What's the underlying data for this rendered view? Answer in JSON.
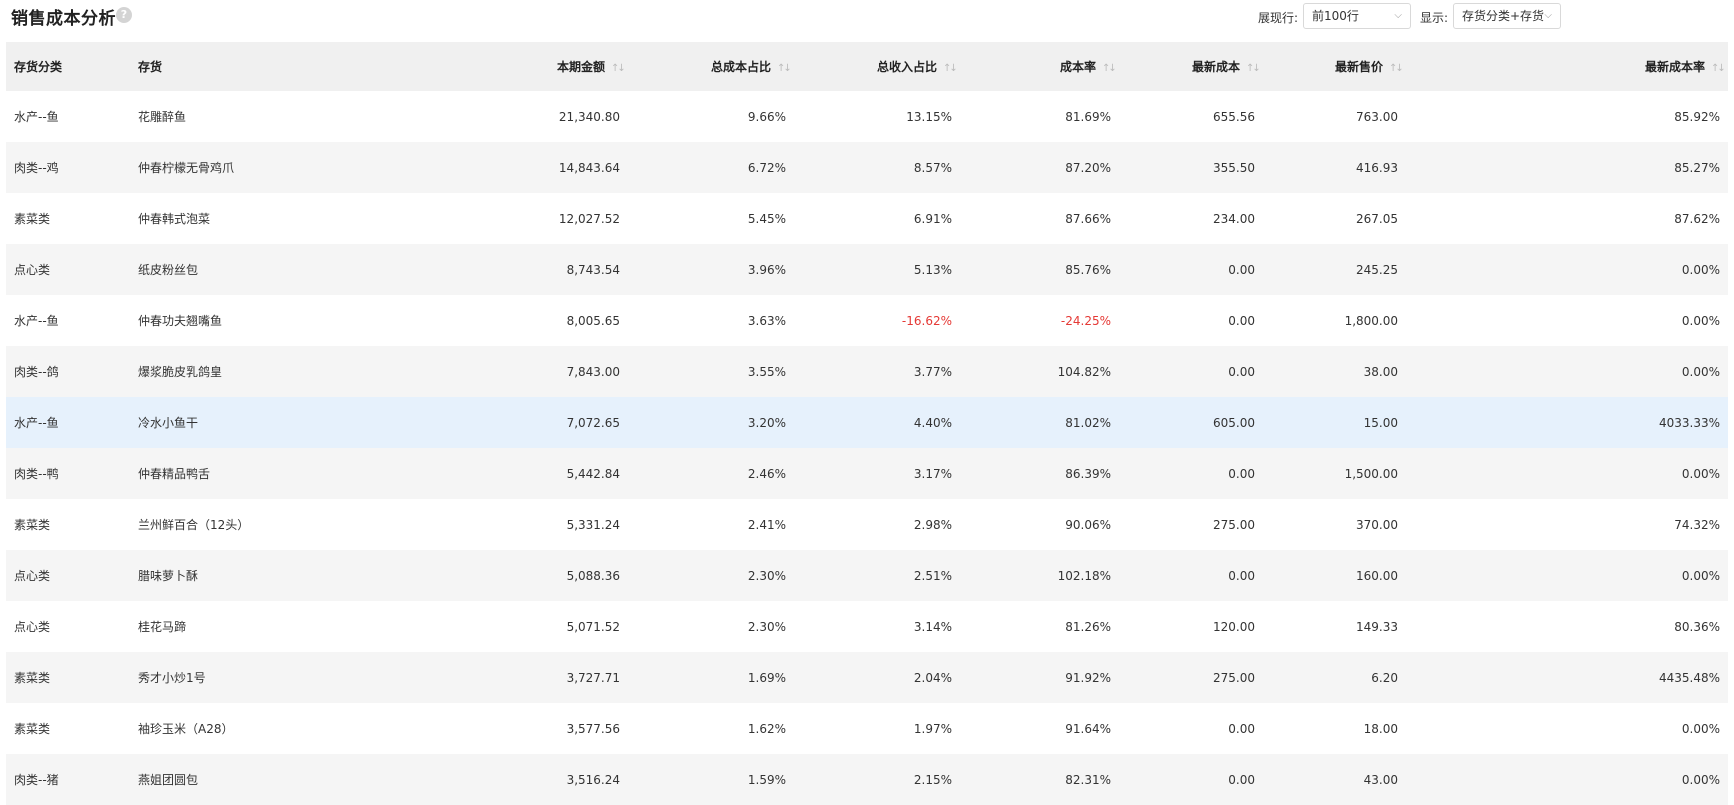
{
  "page": {
    "title": "销售成本分析",
    "help_icon": "question-circle-icon"
  },
  "controls": {
    "rows_label": "展现行:",
    "rows_value": "前100行",
    "display_label": "显示:",
    "display_value": "存货分类+存货"
  },
  "table": {
    "columns": [
      "存货分类",
      "存货",
      "本期金额",
      "总成本占比",
      "总收入占比",
      "成本率",
      "最新成本",
      "最新售价",
      "最新成本率"
    ],
    "rows": [
      [
        "水产--鱼",
        "花雕醉鱼",
        "21,340.80",
        "9.66%",
        "13.15%",
        "81.69%",
        "655.56",
        "763.00",
        "85.92%"
      ],
      [
        "肉类--鸡",
        "仲春柠檬无骨鸡爪",
        "14,843.64",
        "6.72%",
        "8.57%",
        "87.20%",
        "355.50",
        "416.93",
        "85.27%"
      ],
      [
        "素菜类",
        "仲春韩式泡菜",
        "12,027.52",
        "5.45%",
        "6.91%",
        "87.66%",
        "234.00",
        "267.05",
        "87.62%"
      ],
      [
        "点心类",
        "纸皮粉丝包",
        "8,743.54",
        "3.96%",
        "5.13%",
        "85.76%",
        "0.00",
        "245.25",
        "0.00%"
      ],
      [
        "水产--鱼",
        "仲春功夫翘嘴鱼",
        "8,005.65",
        "3.63%",
        "-16.62%",
        "-24.25%",
        "0.00",
        "1,800.00",
        "0.00%"
      ],
      [
        "肉类--鸽",
        "爆浆脆皮乳鸽皇",
        "7,843.00",
        "3.55%",
        "3.77%",
        "104.82%",
        "0.00",
        "38.00",
        "0.00%"
      ],
      [
        "水产--鱼",
        "冷水小鱼干",
        "7,072.65",
        "3.20%",
        "4.40%",
        "81.02%",
        "605.00",
        "15.00",
        "4033.33%"
      ],
      [
        "肉类--鸭",
        "仲春精品鸭舌",
        "5,442.84",
        "2.46%",
        "3.17%",
        "86.39%",
        "0.00",
        "1,500.00",
        "0.00%"
      ],
      [
        "素菜类",
        "兰州鲜百合（12头）",
        "5,331.24",
        "2.41%",
        "2.98%",
        "90.06%",
        "275.00",
        "370.00",
        "74.32%"
      ],
      [
        "点心类",
        "腊味萝卜酥",
        "5,088.36",
        "2.30%",
        "2.51%",
        "102.18%",
        "0.00",
        "160.00",
        "0.00%"
      ],
      [
        "点心类",
        "桂花马蹄",
        "5,071.52",
        "2.30%",
        "3.14%",
        "81.26%",
        "120.00",
        "149.33",
        "80.36%"
      ],
      [
        "素菜类",
        "秀才小炒1号",
        "3,727.71",
        "1.69%",
        "2.04%",
        "91.92%",
        "275.00",
        "6.20",
        "4435.48%"
      ],
      [
        "素菜类",
        "袖珍玉米（A28）",
        "3,577.56",
        "1.62%",
        "1.97%",
        "91.64%",
        "0.00",
        "18.00",
        "0.00%"
      ],
      [
        "肉类--猪",
        "燕姐团圆包",
        "3,516.24",
        "1.59%",
        "2.15%",
        "82.31%",
        "0.00",
        "43.00",
        "0.00%"
      ]
    ],
    "negative_color": "#e53935",
    "highlight_row_color": "#e6f1fc"
  }
}
